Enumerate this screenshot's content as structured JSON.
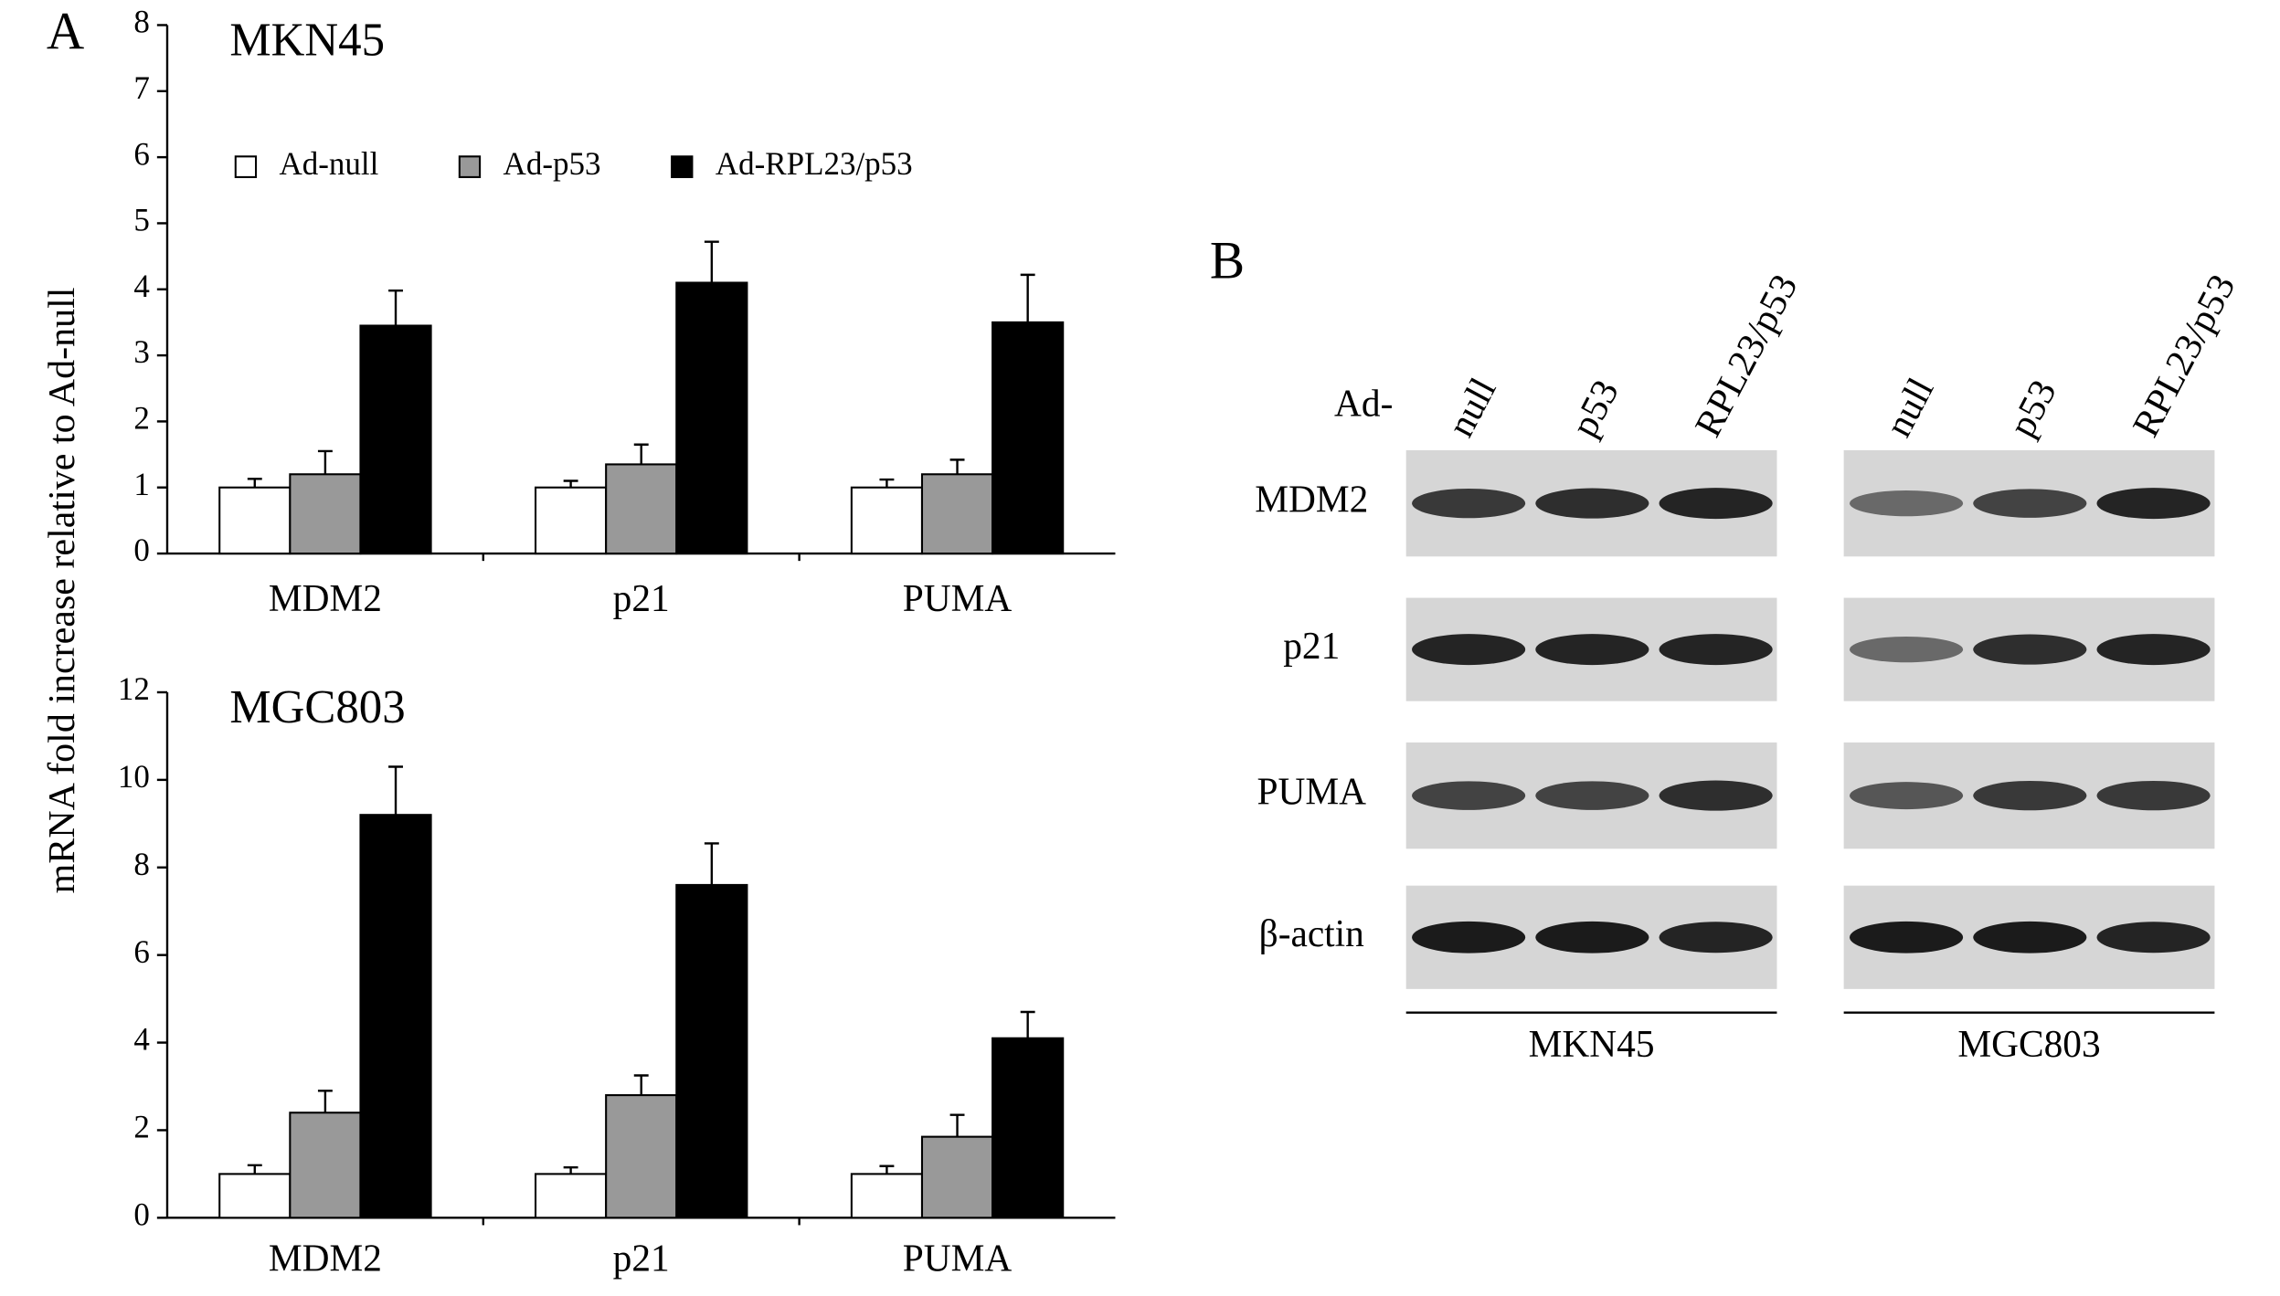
{
  "panel_labels": {
    "a": "A",
    "b": "B"
  },
  "y_label": "mRNA fold increase relative to Ad-null",
  "chart_data": [
    {
      "type": "bar",
      "title": "MKN45",
      "categories": [
        "MDM2",
        "p21",
        "PUMA"
      ],
      "series": [
        {
          "name": "Ad-null",
          "color": "#ffffff",
          "values": [
            1,
            1,
            1
          ],
          "errors": [
            0.13,
            0.1,
            0.12
          ]
        },
        {
          "name": "Ad-p53",
          "color": "#999999",
          "values": [
            1.2,
            1.35,
            1.2
          ],
          "errors": [
            0.35,
            0.3,
            0.22
          ]
        },
        {
          "name": "Ad-RPL23/p53",
          "color": "#000000",
          "values": [
            3.45,
            4.1,
            3.5
          ],
          "errors": [
            0.53,
            0.62,
            0.72
          ]
        }
      ],
      "ylim": [
        0,
        8
      ],
      "yticks": [
        0,
        1,
        2,
        3,
        4,
        5,
        6,
        7,
        8
      ],
      "legend": "top"
    },
    {
      "type": "bar",
      "title": "MGC803",
      "categories": [
        "MDM2",
        "p21",
        "PUMA"
      ],
      "series": [
        {
          "color": "#ffffff",
          "values": [
            1,
            1,
            1
          ],
          "errors": [
            0.2,
            0.15,
            0.18
          ]
        },
        {
          "color": "#999999",
          "values": [
            2.4,
            2.8,
            1.85
          ],
          "errors": [
            0.5,
            0.45,
            0.5
          ]
        },
        {
          "color": "#000000",
          "values": [
            9.2,
            7.6,
            4.1
          ],
          "errors": [
            1.1,
            0.95,
            0.6
          ]
        }
      ],
      "ylim": [
        0,
        12
      ],
      "yticks": [
        0,
        2,
        4,
        6,
        8,
        10,
        12
      ]
    }
  ],
  "blot": {
    "prefix": "Ad-",
    "proteins": [
      "MDM2",
      "p21",
      "PUMA",
      "β-actin"
    ],
    "groups": [
      {
        "name": "MKN45",
        "lanes": [
          "null",
          "p53",
          "RPL23/p53"
        ]
      },
      {
        "name": "MGC803",
        "lanes": [
          "null",
          "p53",
          "RPL23/p53"
        ]
      }
    ]
  }
}
